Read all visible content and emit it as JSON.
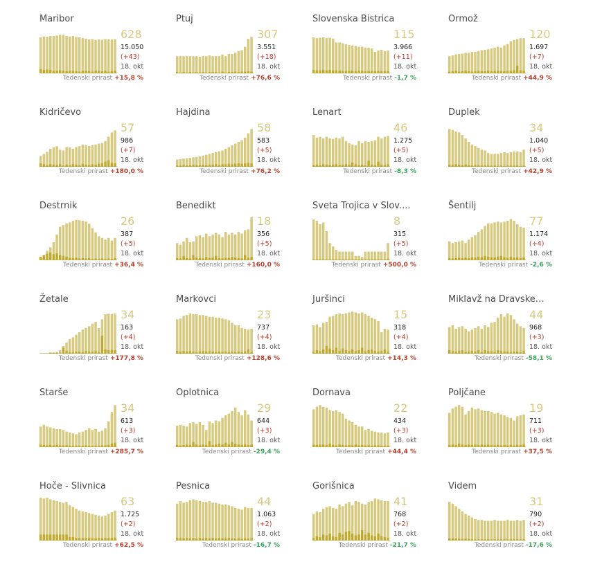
{
  "colors": {
    "bar": "#d7c97e",
    "bar_dark": "#c2a92a",
    "positive": "#b5412e",
    "negative": "#3aa35a"
  },
  "growth_label": "Tedenski prirast",
  "chart_data": [
    {
      "type": "bar",
      "title": "Maribor",
      "active": "628",
      "total": "15.050",
      "new": "(+43)",
      "date": "18. okt",
      "growth": "+15,8 %",
      "sign": "pos",
      "values": [
        84,
        86,
        85,
        87,
        87,
        88,
        90,
        90,
        87,
        86,
        87,
        85,
        84,
        82,
        81,
        79,
        80,
        78,
        79,
        78,
        80,
        79,
        79,
        80
      ],
      "new_values": [
        10,
        8,
        9,
        8,
        6,
        6,
        7,
        6,
        5,
        6,
        6,
        5,
        4,
        6,
        6,
        5,
        4,
        6,
        6,
        5,
        6,
        4,
        5,
        6
      ]
    },
    {
      "type": "bar",
      "title": "Ptuj",
      "active": "307",
      "total": "3.551",
      "new": "(+18)",
      "date": "18. okt",
      "growth": "+76,6 %",
      "sign": "pos",
      "values": [
        40,
        40,
        40,
        40,
        40,
        40,
        40,
        39,
        40,
        40,
        42,
        40,
        40,
        40,
        44,
        40,
        45,
        45,
        48,
        52,
        54,
        62,
        80,
        85
      ],
      "new_values": [
        3,
        2,
        3,
        2,
        3,
        2,
        3,
        2,
        3,
        2,
        3,
        3,
        3,
        2,
        4,
        2,
        3,
        3,
        4,
        3,
        4,
        4,
        5,
        4
      ]
    },
    {
      "type": "bar",
      "title": "Slovenska Bistrica",
      "active": "115",
      "total": "3.966",
      "new": "(+11)",
      "date": "18. okt",
      "growth": "-1,7 %",
      "sign": "neg",
      "values": [
        84,
        82,
        83,
        84,
        82,
        83,
        81,
        72,
        72,
        70,
        68,
        66,
        65,
        64,
        62,
        62,
        60,
        60,
        58,
        50,
        53,
        55,
        52,
        53
      ],
      "new_values": [
        8,
        7,
        7,
        8,
        7,
        8,
        7,
        7,
        6,
        6,
        6,
        6,
        6,
        5,
        6,
        6,
        5,
        5,
        5,
        5,
        5,
        5,
        5,
        5
      ]
    },
    {
      "type": "bar",
      "title": "Ormož",
      "active": "120",
      "total": "1.697",
      "new": "(+7)",
      "date": "18. okt",
      "growth": "+44,9 %",
      "sign": "pos",
      "values": [
        40,
        42,
        44,
        45,
        46,
        48,
        48,
        50,
        50,
        52,
        54,
        55,
        56,
        58,
        60,
        62,
        60,
        65,
        68,
        75,
        78,
        80,
        82,
        82
      ],
      "new_values": [
        4,
        5,
        6,
        4,
        5,
        6,
        5,
        4,
        5,
        6,
        5,
        5,
        6,
        5,
        5,
        6,
        5,
        5,
        6,
        6,
        7,
        18,
        7,
        6
      ]
    },
    {
      "type": "bar",
      "title": "Kidričevo",
      "active": "57",
      "total": "986",
      "new": "(+7)",
      "date": "18. okt",
      "growth": "+180,0 %",
      "sign": "pos",
      "values": [
        25,
        30,
        35,
        42,
        45,
        48,
        40,
        38,
        46,
        45,
        42,
        46,
        48,
        52,
        50,
        48,
        50,
        52,
        54,
        55,
        60,
        70,
        80,
        85
      ],
      "new_values": [
        8,
        6,
        4,
        6,
        5,
        4,
        6,
        3,
        5,
        4,
        6,
        5,
        4,
        7,
        5,
        4,
        6,
        5,
        7,
        8,
        12,
        15,
        10,
        8
      ]
    },
    {
      "type": "bar",
      "title": "Hajdina",
      "active": "58",
      "total": "583",
      "new": "(+5)",
      "date": "18. okt",
      "growth": "+76,2 %",
      "sign": "pos",
      "values": [
        17,
        18,
        19,
        20,
        21,
        22,
        23,
        24,
        26,
        28,
        30,
        32,
        34,
        36,
        38,
        42,
        46,
        50,
        54,
        58,
        62,
        68,
        78,
        88
      ],
      "new_values": [
        3,
        3,
        4,
        3,
        4,
        5,
        4,
        4,
        5,
        4,
        5,
        5,
        6,
        4,
        6,
        6,
        7,
        6,
        7,
        8,
        7,
        8,
        9,
        8
      ]
    },
    {
      "type": "bar",
      "title": "Lenart",
      "active": "46",
      "total": "1.275",
      "new": "(+5)",
      "date": "18. okt",
      "growth": "-8,3 %",
      "sign": "neg",
      "values": [
        74,
        68,
        70,
        66,
        70,
        66,
        65,
        68,
        66,
        70,
        60,
        55,
        52,
        50,
        60,
        55,
        60,
        58,
        60,
        62,
        70,
        66,
        70,
        72
      ],
      "new_values": [
        4,
        5,
        4,
        6,
        5,
        4,
        5,
        6,
        4,
        5,
        6,
        5,
        10,
        6,
        4,
        5,
        4,
        14,
        5,
        4,
        12,
        5,
        4,
        6
      ]
    },
    {
      "type": "bar",
      "title": "Duplek",
      "active": "34",
      "total": "1.040",
      "new": "(+5)",
      "date": "18. okt",
      "growth": "+42,9 %",
      "sign": "pos",
      "values": [
        88,
        86,
        82,
        80,
        74,
        66,
        58,
        52,
        48,
        44,
        40,
        38,
        32,
        30,
        30,
        30,
        32,
        34,
        32,
        34,
        36,
        36,
        34,
        40
      ],
      "new_values": [
        5,
        5,
        6,
        5,
        4,
        5,
        4,
        3,
        4,
        4,
        3,
        3,
        3,
        3,
        3,
        2,
        3,
        2,
        3,
        3,
        3,
        3,
        2,
        3
      ]
    },
    {
      "type": "bar",
      "title": "Destrnik",
      "active": "26",
      "total": "387",
      "new": "(+5)",
      "date": "18. okt",
      "growth": "+36,4 %",
      "sign": "pos",
      "values": [
        5,
        12,
        22,
        30,
        42,
        60,
        78,
        82,
        86,
        88,
        92,
        94,
        93,
        92,
        90,
        85,
        75,
        65,
        56,
        52,
        48,
        52,
        46,
        52
      ],
      "new_values": [
        8,
        12,
        15,
        18,
        14,
        16,
        12,
        10,
        8,
        6,
        5,
        6,
        4,
        5,
        4,
        5,
        3,
        4,
        3,
        4,
        3,
        4,
        3,
        5
      ]
    },
    {
      "type": "bar",
      "title": "Benedikt",
      "active": "18",
      "total": "356",
      "new": "(+5)",
      "date": "18. okt",
      "growth": "+160,0 %",
      "sign": "pos",
      "values": [
        40,
        36,
        44,
        52,
        42,
        44,
        56,
        58,
        54,
        62,
        56,
        60,
        64,
        60,
        54,
        66,
        60,
        64,
        60,
        66,
        62,
        70,
        72,
        100
      ],
      "new_values": [
        5,
        4,
        10,
        5,
        4,
        12,
        6,
        5,
        4,
        8,
        5,
        6,
        10,
        5,
        4,
        6,
        5,
        8,
        6,
        5,
        4,
        12,
        6,
        8
      ]
    },
    {
      "type": "bar",
      "title": "Sveta Trojica v Slov....",
      "active": "8",
      "total": "315",
      "new": "(+5)",
      "date": "18. okt",
      "growth": "+500,0 %",
      "sign": "pos",
      "values": [
        95,
        92,
        84,
        88,
        68,
        40,
        32,
        24,
        20,
        20,
        20,
        20,
        20,
        10,
        10,
        8,
        20,
        20,
        20,
        20,
        20,
        20,
        20,
        40
      ],
      "new_values": [
        2,
        2,
        2,
        2,
        2,
        2,
        2,
        2,
        2,
        2,
        2,
        2,
        2,
        2,
        2,
        2,
        2,
        2,
        2,
        2,
        2,
        2,
        2,
        3
      ]
    },
    {
      "type": "bar",
      "title": "Šentilj",
      "active": "77",
      "total": "1.174",
      "new": "(+4)",
      "date": "18. okt",
      "growth": "-2,6 %",
      "sign": "neg",
      "values": [
        44,
        40,
        42,
        44,
        46,
        40,
        48,
        54,
        58,
        66,
        72,
        80,
        86,
        86,
        88,
        90,
        88,
        90,
        92,
        96,
        92,
        84,
        78,
        76
      ],
      "new_values": [
        5,
        4,
        5,
        6,
        5,
        6,
        5,
        7,
        6,
        8,
        7,
        10,
        8,
        7,
        6,
        8,
        10,
        7,
        6,
        8,
        6,
        7,
        5,
        6
      ]
    },
    {
      "type": "bar",
      "title": "Žetale",
      "active": "34",
      "total": "163",
      "new": "(+4)",
      "date": "18. okt",
      "growth": "+177,8 %",
      "sign": "pos",
      "values": [
        0,
        0,
        0,
        3,
        3,
        4,
        8,
        18,
        26,
        34,
        38,
        44,
        50,
        56,
        60,
        64,
        70,
        74,
        60,
        80,
        92,
        93,
        92,
        94
      ],
      "new_values": [
        0,
        0,
        0,
        2,
        2,
        2,
        2,
        14,
        6,
        4,
        4,
        5,
        5,
        4,
        6,
        5,
        5,
        6,
        4,
        42,
        10,
        8,
        9,
        8
      ]
    },
    {
      "type": "bar",
      "title": "Markovci",
      "active": "23",
      "total": "737",
      "new": "(+4)",
      "date": "18. okt",
      "growth": "+128,6 %",
      "sign": "pos",
      "values": [
        80,
        82,
        88,
        90,
        94,
        92,
        92,
        90,
        90,
        88,
        86,
        86,
        84,
        84,
        82,
        80,
        78,
        72,
        66,
        66,
        60,
        58,
        56,
        58
      ],
      "new_values": [
        6,
        5,
        6,
        5,
        6,
        5,
        4,
        5,
        6,
        5,
        6,
        5,
        4,
        5,
        4,
        5,
        4,
        5,
        4,
        5,
        4,
        5,
        10,
        4
      ]
    },
    {
      "type": "bar",
      "title": "Juršinci",
      "active": "15",
      "total": "318",
      "new": "(+4)",
      "date": "18. okt",
      "growth": "+14,3 %",
      "sign": "pos",
      "values": [
        66,
        68,
        62,
        72,
        74,
        86,
        88,
        92,
        94,
        92,
        94,
        96,
        98,
        96,
        94,
        96,
        92,
        88,
        84,
        80,
        76,
        50,
        58,
        56
      ],
      "new_values": [
        5,
        8,
        6,
        10,
        18,
        12,
        8,
        14,
        6,
        12,
        8,
        6,
        10,
        6,
        8,
        14,
        6,
        8,
        10,
        6,
        5,
        6,
        10,
        5
      ]
    },
    {
      "type": "bar",
      "title": "Miklavž na Dravske…",
      "active": "44",
      "total": "968",
      "new": "(+3)",
      "date": "18. okt",
      "growth": "-58,1 %",
      "sign": "neg",
      "values": [
        62,
        66,
        58,
        62,
        64,
        58,
        52,
        56,
        60,
        64,
        58,
        66,
        62,
        72,
        74,
        84,
        92,
        86,
        94,
        90,
        80,
        70,
        64,
        60
      ],
      "new_values": [
        8,
        6,
        5,
        6,
        8,
        4,
        5,
        6,
        5,
        8,
        4,
        8,
        6,
        6,
        4,
        8,
        6,
        5,
        5,
        4,
        5,
        5,
        4,
        6
      ]
    },
    {
      "type": "bar",
      "title": "Starše",
      "active": "34",
      "total": "613",
      "new": "(+3)",
      "date": "18. okt",
      "growth": "+285,7 %",
      "sign": "pos",
      "values": [
        48,
        52,
        48,
        46,
        44,
        42,
        42,
        40,
        36,
        34,
        32,
        30,
        34,
        36,
        40,
        44,
        40,
        42,
        36,
        38,
        44,
        60,
        82,
        98
      ],
      "new_values": [
        6,
        5,
        4,
        5,
        4,
        5,
        4,
        4,
        4,
        3,
        3,
        3,
        3,
        3,
        4,
        3,
        3,
        3,
        3,
        4,
        4,
        5,
        8,
        10
      ]
    },
    {
      "type": "bar",
      "title": "Oplotnica",
      "active": "29",
      "total": "644",
      "new": "(+3)",
      "date": "18. okt",
      "growth": "-29,4 %",
      "sign": "neg",
      "values": [
        50,
        52,
        50,
        48,
        56,
        58,
        54,
        58,
        52,
        40,
        60,
        56,
        62,
        60,
        68,
        74,
        78,
        84,
        92,
        82,
        74,
        86,
        76,
        62
      ],
      "new_values": [
        5,
        4,
        5,
        6,
        5,
        12,
        6,
        4,
        6,
        5,
        14,
        5,
        6,
        8,
        6,
        10,
        6,
        12,
        8,
        6,
        5,
        6,
        5,
        6
      ]
    },
    {
      "type": "bar",
      "title": "Dornava",
      "active": "22",
      "total": "434",
      "new": "(+3)",
      "date": "18. okt",
      "growth": "+44,4 %",
      "sign": "pos",
      "values": [
        88,
        94,
        98,
        94,
        92,
        86,
        84,
        86,
        82,
        78,
        66,
        62,
        58,
        52,
        48,
        48,
        40,
        42,
        38,
        36,
        34,
        34,
        32,
        34
      ],
      "new_values": [
        6,
        5,
        6,
        6,
        5,
        8,
        5,
        4,
        6,
        5,
        4,
        5,
        4,
        6,
        4,
        5,
        4,
        4,
        3,
        4,
        4,
        3,
        3,
        3
      ]
    },
    {
      "type": "bar",
      "title": "Poljčane",
      "active": "19",
      "total": "711",
      "new": "(+3)",
      "date": "18. okt",
      "growth": "+37,5 %",
      "sign": "pos",
      "values": [
        80,
        90,
        94,
        98,
        94,
        76,
        84,
        92,
        88,
        90,
        86,
        84,
        84,
        82,
        78,
        80,
        76,
        74,
        70,
        68,
        62,
        72,
        74,
        76
      ],
      "new_values": [
        5,
        6,
        5,
        8,
        6,
        5,
        6,
        5,
        6,
        5,
        6,
        5,
        6,
        5,
        4,
        5,
        4,
        5,
        4,
        5,
        4,
        5,
        5,
        6
      ]
    },
    {
      "type": "bar",
      "title": "Hoče - Slivnica",
      "active": "63",
      "total": "1.725",
      "new": "(+2)",
      "date": "18. okt",
      "growth": "+62,5 %",
      "sign": "pos",
      "values": [
        100,
        98,
        100,
        96,
        94,
        92,
        90,
        88,
        90,
        82,
        78,
        74,
        70,
        68,
        66,
        64,
        62,
        60,
        58,
        56,
        58,
        62,
        66,
        70
      ],
      "new_values": [
        14,
        14,
        14,
        14,
        14,
        14,
        14,
        14,
        14,
        8,
        8,
        6,
        6,
        6,
        6,
        6,
        6,
        5,
        6,
        5,
        6,
        6,
        6,
        7
      ]
    },
    {
      "type": "bar",
      "title": "Pesnica",
      "active": "44",
      "total": "1.063",
      "new": "(+2)",
      "date": "18. okt",
      "growth": "-16,7 %",
      "sign": "neg",
      "values": [
        86,
        92,
        88,
        90,
        94,
        96,
        94,
        92,
        90,
        90,
        92,
        88,
        88,
        86,
        84,
        84,
        82,
        80,
        76,
        74,
        72,
        78,
        76,
        76
      ],
      "new_values": [
        6,
        6,
        5,
        6,
        5,
        6,
        5,
        6,
        5,
        6,
        5,
        6,
        5,
        6,
        5,
        5,
        6,
        5,
        4,
        5,
        4,
        5,
        5,
        5
      ]
    },
    {
      "type": "bar",
      "title": "Gorišnica",
      "active": "41",
      "total": "768",
      "new": "(+2)",
      "date": "18. okt",
      "growth": "-21,7 %",
      "sign": "neg",
      "values": [
        62,
        68,
        66,
        74,
        78,
        80,
        76,
        74,
        84,
        80,
        86,
        90,
        82,
        92,
        90,
        86,
        84,
        90,
        92,
        98,
        96,
        94,
        92,
        92
      ],
      "new_values": [
        6,
        10,
        8,
        14,
        12,
        16,
        10,
        8,
        18,
        14,
        20,
        22,
        16,
        12,
        14,
        24,
        14,
        18,
        12,
        10,
        16,
        10,
        8,
        6
      ]
    },
    {
      "type": "bar",
      "title": "Videm",
      "active": "31",
      "total": "790",
      "new": "(+2)",
      "date": "18. okt",
      "growth": "-17,6 %",
      "sign": "neg",
      "values": [
        90,
        86,
        80,
        74,
        68,
        62,
        58,
        54,
        50,
        48,
        48,
        46,
        46,
        46,
        48,
        46,
        46,
        46,
        48,
        46,
        46,
        48,
        46,
        48
      ],
      "new_values": [
        5,
        5,
        5,
        4,
        4,
        4,
        4,
        3,
        3,
        3,
        3,
        3,
        3,
        3,
        3,
        3,
        3,
        3,
        3,
        3,
        3,
        3,
        3,
        3
      ]
    }
  ]
}
